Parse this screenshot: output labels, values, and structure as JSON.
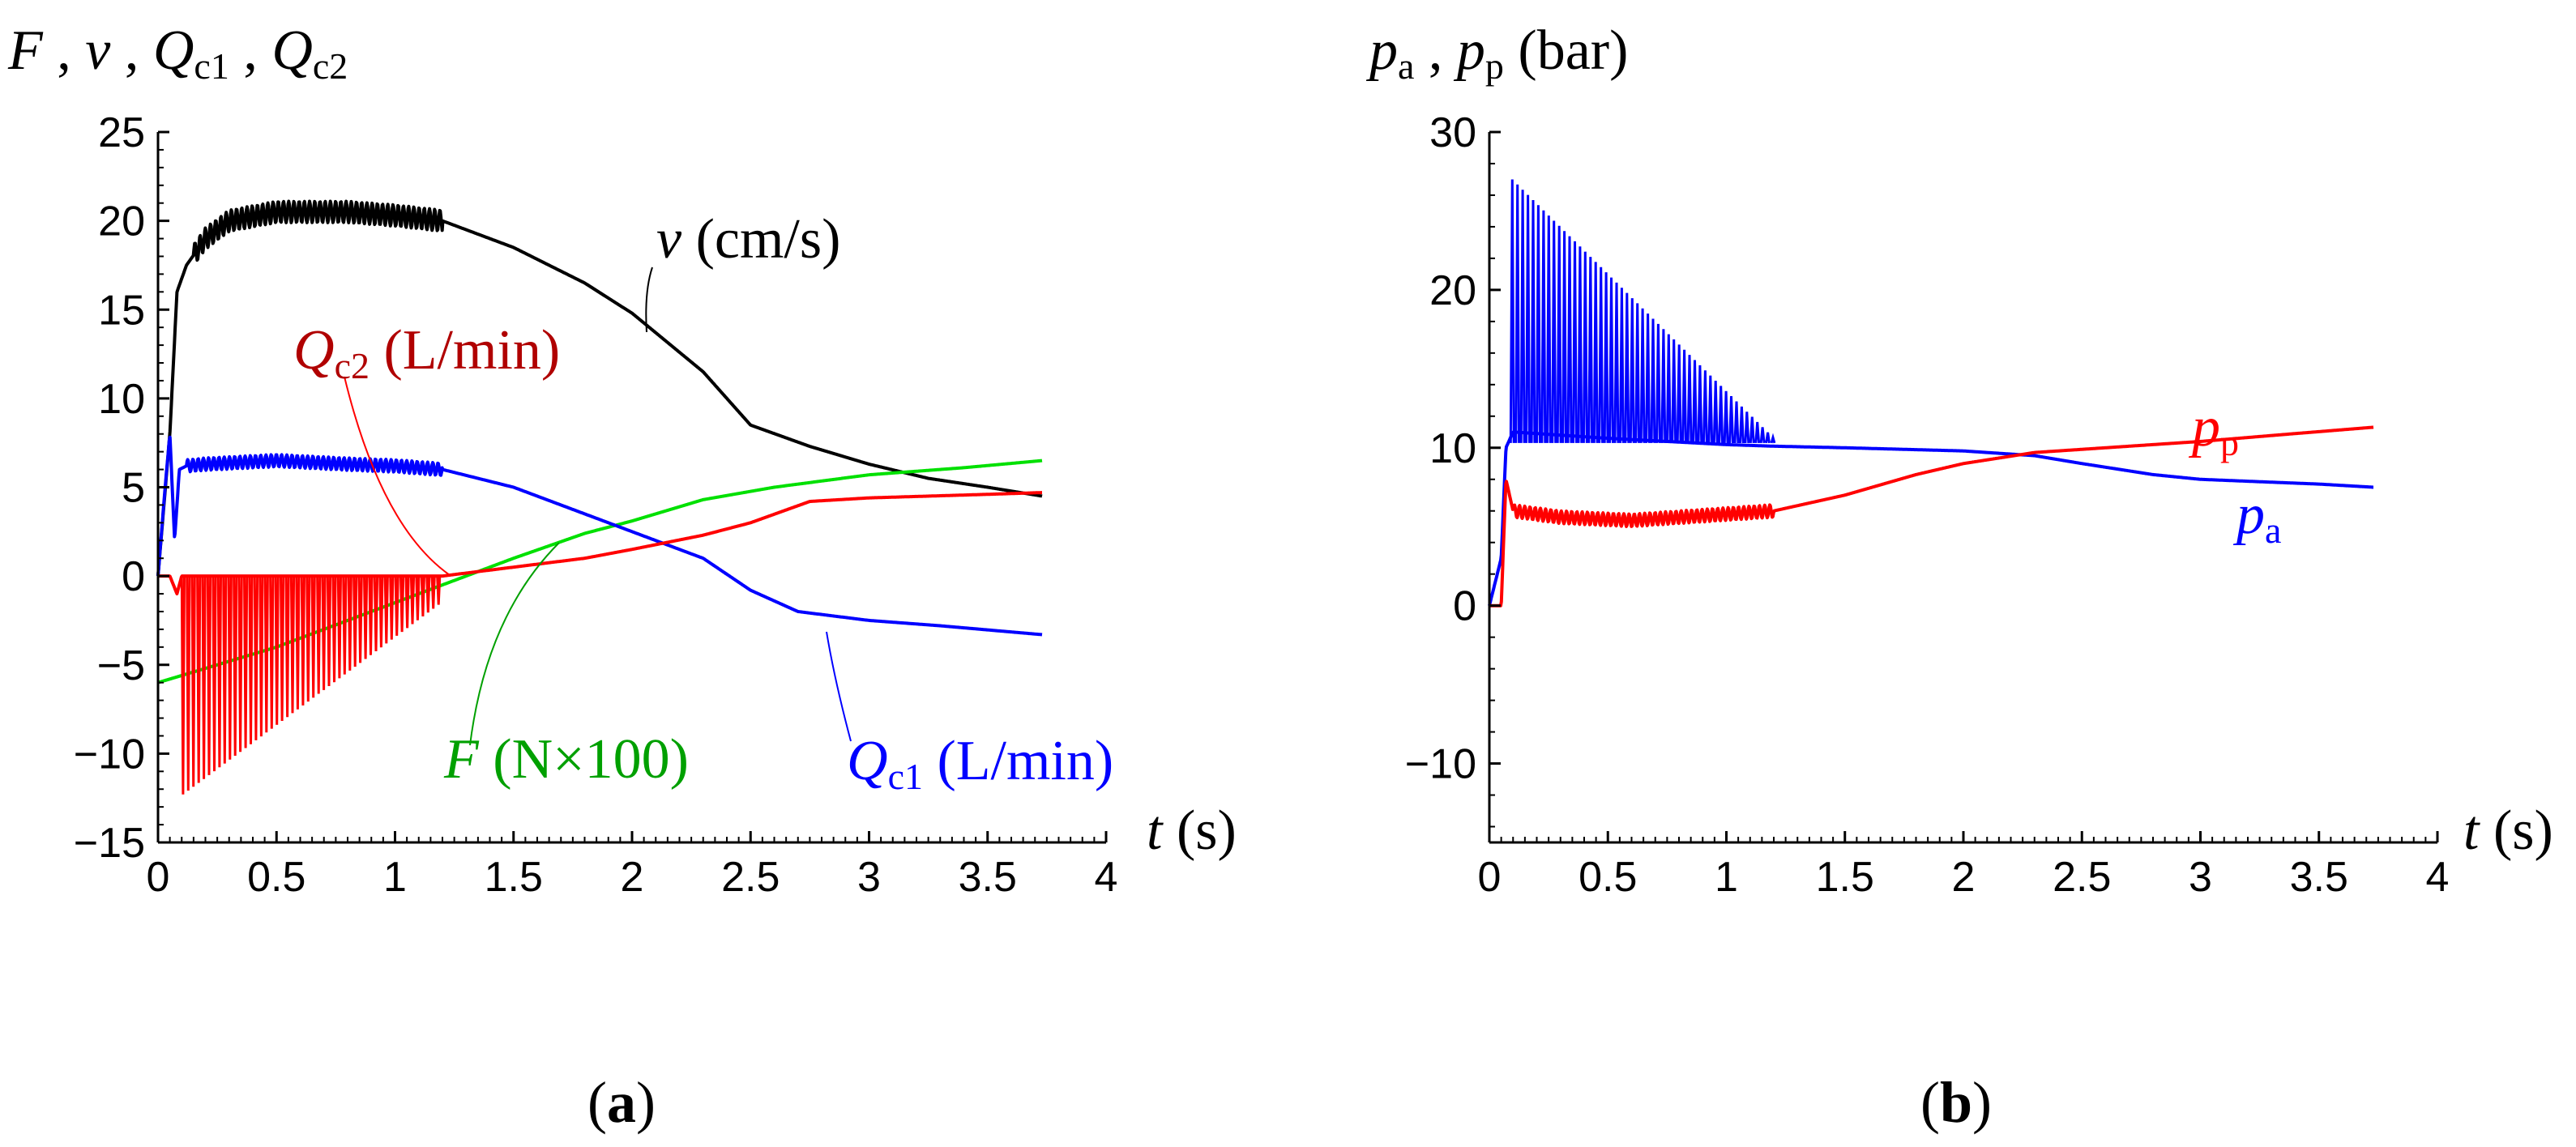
{
  "captions": {
    "a_open": "(",
    "a_letter": "a",
    "a_close": ")",
    "b_open": "(",
    "b_letter": "b",
    "b_close": ")"
  },
  "chart_data": [
    {
      "id": "a",
      "type": "line",
      "title": "",
      "ylabel": {
        "parts": [
          "F",
          " , ",
          "v",
          " , ",
          "Q",
          "c1",
          " , ",
          "Q",
          "c2"
        ]
      },
      "xlabel": {
        "var": "t",
        "unit": "s"
      },
      "xlim": [
        0,
        4
      ],
      "ylim": [
        -15,
        25
      ],
      "xticks": [
        0,
        0.5,
        1,
        1.5,
        2,
        2.5,
        3,
        3.5,
        4
      ],
      "xtick_labels": [
        "0",
        "0.5",
        "1",
        "1.5",
        "2",
        "2.5",
        "3",
        "3.5",
        "4"
      ],
      "yticks": [
        -15,
        -10,
        -5,
        0,
        5,
        10,
        15,
        20,
        25
      ],
      "ytick_labels": [
        "−15",
        "−10",
        "−5",
        "0",
        "5",
        "10",
        "15",
        "20",
        "25"
      ],
      "series": [
        {
          "name": "v",
          "label_var": "v",
          "label_unit": "cm/s",
          "color": "#000000",
          "x": [
            0,
            0.05,
            0.08,
            0.12,
            0.2,
            0.3,
            0.5,
            0.8,
            1.0,
            1.2,
            1.5,
            1.8,
            2.0,
            2.3,
            2.5,
            2.75,
            3.0,
            3.25,
            3.5,
            3.73
          ],
          "y": [
            0,
            8,
            16,
            17.5,
            19,
            20,
            20.5,
            20.5,
            20.3,
            20,
            18.5,
            16.5,
            14.8,
            11.5,
            8.5,
            7.3,
            6.3,
            5.5,
            5.0,
            4.5
          ],
          "ripple": {
            "from": 0.15,
            "to": 1.2,
            "period": 0.022,
            "amp": 0.6
          }
        },
        {
          "name": "F",
          "label_var": "F",
          "label_unit": "N×100",
          "color": "#00e000",
          "label_color": "#00a000",
          "x": [
            0,
            0.5,
            1.0,
            1.2,
            1.5,
            1.8,
            2.0,
            2.3,
            2.6,
            3.0,
            3.4,
            3.73
          ],
          "y": [
            -6,
            -4,
            -1.5,
            -0.5,
            1,
            2.4,
            3.1,
            4.3,
            5.0,
            5.7,
            6.1,
            6.5
          ]
        },
        {
          "name": "Q_c1",
          "label_var": "Q",
          "label_sub": "c1",
          "label_unit": "L/min",
          "color": "#0000ff",
          "x": [
            0,
            0.03,
            0.05,
            0.07,
            0.09,
            0.12,
            0.2,
            0.5,
            0.8,
            1.0,
            1.2,
            1.5,
            1.8,
            2.0,
            2.3,
            2.5,
            2.7,
            3.0,
            3.3,
            3.73
          ],
          "y": [
            0,
            5,
            8,
            2,
            6,
            6.2,
            6.3,
            6.5,
            6.3,
            6.2,
            6.0,
            5.0,
            3.5,
            2.5,
            1.0,
            -0.8,
            -2.0,
            -2.5,
            -2.8,
            -3.3
          ],
          "ripple": {
            "from": 0.12,
            "to": 1.2,
            "period": 0.022,
            "amp": 0.35
          }
        },
        {
          "name": "Q_c2",
          "label_var": "Q",
          "label_sub": "c2",
          "label_unit": "L/min",
          "color": "#ff0000",
          "label_color": "#b00000",
          "x": [
            0,
            0.05,
            0.08,
            0.1,
            1.2,
            1.5,
            1.8,
            2.0,
            2.3,
            2.5,
            2.75,
            3.0,
            3.5,
            3.73
          ],
          "y": [
            0,
            0,
            -1,
            0,
            0,
            0.5,
            1.0,
            1.5,
            2.3,
            3.0,
            4.2,
            4.4,
            4.6,
            4.7
          ],
          "spikes": {
            "from": 0.1,
            "to": 1.19,
            "period": 0.022,
            "depth_start": -12.3,
            "depth_end": -1.5
          }
        }
      ]
    },
    {
      "id": "b",
      "type": "line",
      "title": "",
      "ylabel": {
        "parts": [
          "p",
          "a",
          " , ",
          "p",
          "p"
        ],
        "unit": "bar"
      },
      "xlabel": {
        "var": "t",
        "unit": "s"
      },
      "xlim": [
        0,
        4
      ],
      "ylim": [
        -15,
        30
      ],
      "xticks": [
        0,
        0.5,
        1,
        1.5,
        2,
        2.5,
        3,
        3.5,
        4
      ],
      "xtick_labels": [
        "0",
        "0.5",
        "1",
        "1.5",
        "2",
        "2.5",
        "3",
        "3.5",
        "4"
      ],
      "yticks": [
        -10,
        0,
        10,
        20,
        30
      ],
      "ytick_labels": [
        "−10",
        "0",
        "10",
        "20",
        "30"
      ],
      "series": [
        {
          "name": "p_a",
          "label_var": "p",
          "label_sub": "a",
          "color": "#0000ff",
          "x": [
            0,
            0.05,
            0.07,
            0.1,
            0.2,
            0.5,
            1.0,
            1.2,
            1.5,
            2.0,
            2.3,
            2.5,
            2.8,
            3.0,
            3.5,
            3.73
          ],
          "y": [
            0,
            3,
            10,
            11,
            10.9,
            10.6,
            10.2,
            10.1,
            10.0,
            9.8,
            9.5,
            9.0,
            8.3,
            8.0,
            7.7,
            7.5
          ],
          "oscillation": {
            "from": 0.09,
            "to": 1.2,
            "period": 0.022,
            "peak_start": 27,
            "peak_end": 10.5,
            "base": 10.3
          }
        },
        {
          "name": "p_p",
          "label_var": "p",
          "label_sub": "p",
          "color": "#ff0000",
          "x": [
            0,
            0.05,
            0.07,
            0.1,
            0.3,
            0.6,
            1.0,
            1.2,
            1.5,
            1.8,
            2.0,
            2.3,
            2.6,
            3.0,
            3.4,
            3.73
          ],
          "y": [
            0,
            0,
            8,
            6,
            5.6,
            5.4,
            5.8,
            6.0,
            7.0,
            8.3,
            9.0,
            9.7,
            10.0,
            10.4,
            10.9,
            11.3
          ],
          "ripple": {
            "from": 0.1,
            "to": 1.2,
            "period": 0.022,
            "amp": 0.4
          }
        }
      ]
    }
  ]
}
